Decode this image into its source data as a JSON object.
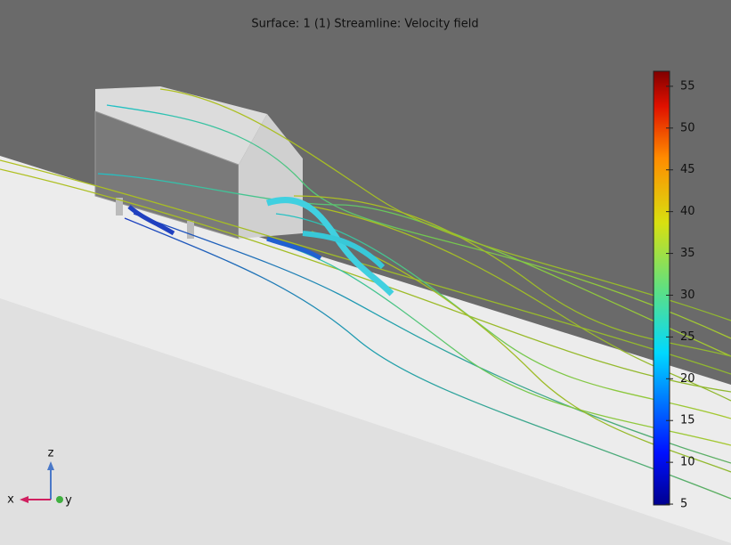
{
  "title": "Surface: 1 (1)  Streamline: Velocity field",
  "colorbar": {
    "range": [
      4.9,
      56.8
    ],
    "ticks": [
      5,
      10,
      15,
      20,
      25,
      30,
      35,
      40,
      45,
      50,
      55
    ]
  },
  "triad": {
    "z": "z",
    "x": "x",
    "y": "y"
  }
}
